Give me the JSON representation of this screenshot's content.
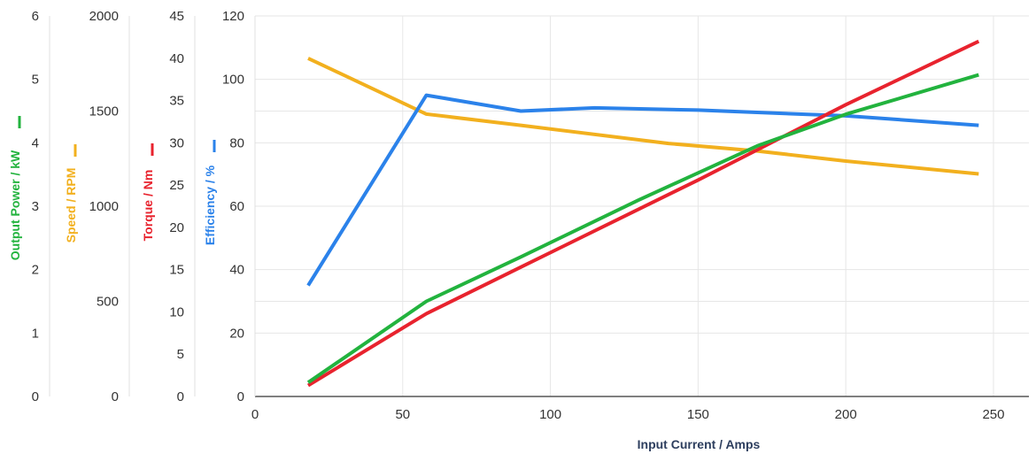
{
  "chart_data": {
    "type": "line",
    "xlabel": "Input Current / Amps",
    "x_ticks": [
      "0",
      "50",
      "100",
      "150",
      "200",
      "250"
    ],
    "xlim": [
      0,
      262
    ],
    "grid": true,
    "axes": [
      {
        "id": "power",
        "label": "Output Power / kW",
        "color": "#22B33E",
        "range": [
          0,
          6
        ],
        "ticks": [
          "0",
          "1",
          "2",
          "3",
          "4",
          "5",
          "6"
        ]
      },
      {
        "id": "speed",
        "label": "Speed / RPM",
        "color": "#F2B01E",
        "range": [
          0,
          2000
        ],
        "ticks": [
          "0",
          "500",
          "1000",
          "1500",
          "2000"
        ]
      },
      {
        "id": "torque",
        "label": "Torque / Nm",
        "color": "#E8232E",
        "range": [
          0,
          45
        ],
        "ticks": [
          "0",
          "5",
          "10",
          "15",
          "20",
          "25",
          "30",
          "35",
          "40",
          "45"
        ]
      },
      {
        "id": "efficiency",
        "label": "Efficiency / %",
        "color": "#2B82EA",
        "range": [
          0,
          120
        ],
        "ticks": [
          "0",
          "20",
          "40",
          "60",
          "80",
          "100",
          "120"
        ]
      }
    ],
    "series": [
      {
        "axis": "speed",
        "color": "#F2B01E",
        "points": [
          [
            18,
            1777
          ],
          [
            58,
            1484
          ],
          [
            90,
            1425
          ],
          [
            140,
            1330
          ],
          [
            170,
            1290
          ],
          [
            200,
            1237
          ],
          [
            245,
            1170
          ]
        ]
      },
      {
        "axis": "efficiency",
        "color": "#2B82EA",
        "points": [
          [
            18,
            35
          ],
          [
            58,
            95
          ],
          [
            90,
            90
          ],
          [
            115,
            91
          ],
          [
            150,
            90.3
          ],
          [
            200,
            88.5
          ],
          [
            245,
            85.5
          ]
        ]
      },
      {
        "axis": "torque",
        "color": "#E8232E",
        "points": [
          [
            18,
            1.3
          ],
          [
            58,
            9.8
          ],
          [
            90,
            15.3
          ],
          [
            150,
            25.6
          ],
          [
            200,
            34.5
          ],
          [
            245,
            42
          ]
        ]
      },
      {
        "axis": "power",
        "color": "#22B33E",
        "points": [
          [
            18,
            0.22
          ],
          [
            58,
            1.5
          ],
          [
            90,
            2.2
          ],
          [
            130,
            3.1
          ],
          [
            170,
            3.95
          ],
          [
            200,
            4.45
          ],
          [
            245,
            5.07
          ]
        ]
      }
    ]
  }
}
